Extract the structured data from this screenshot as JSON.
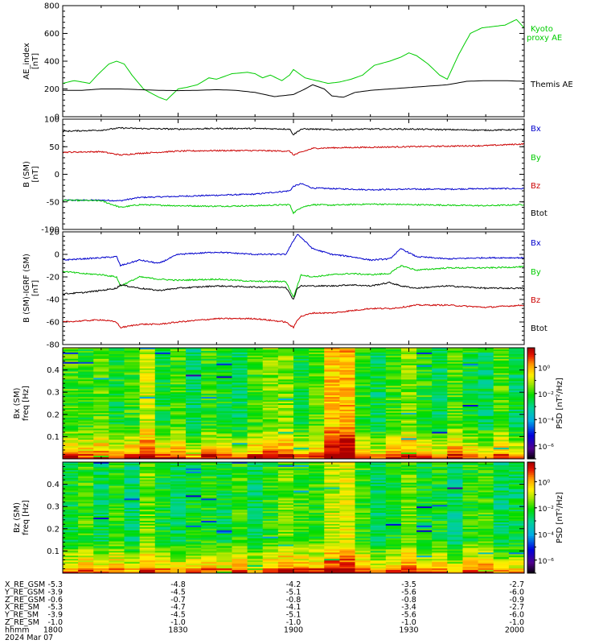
{
  "chart_data": [
    {
      "type": "line",
      "ylabel": "AE_index [nT]",
      "ylim": [
        0,
        800
      ],
      "y_ticks": [
        0,
        200,
        400,
        600,
        800
      ],
      "x_range": [
        "18:00",
        "20:00"
      ],
      "series": [
        {
          "name": "Kyoto proxy AE",
          "color": "#00cc00",
          "x": [
            "18:00",
            "18:03",
            "18:07",
            "18:09",
            "18:12",
            "18:14",
            "18:16",
            "18:18",
            "18:21",
            "18:25",
            "18:27",
            "18:30",
            "18:32",
            "18:35",
            "18:38",
            "18:40",
            "18:44",
            "18:48",
            "18:50",
            "18:52",
            "18:54",
            "18:57",
            "18:59",
            "19:00",
            "19:03",
            "19:06",
            "19:09",
            "19:12",
            "19:15",
            "19:18",
            "19:21",
            "19:25",
            "19:28",
            "19:30",
            "19:32",
            "19:35",
            "19:38",
            "19:40",
            "19:43",
            "19:46",
            "19:49",
            "19:52",
            "19:55",
            "19:58",
            "20:00"
          ],
          "values": [
            240,
            260,
            240,
            300,
            380,
            400,
            380,
            300,
            200,
            140,
            120,
            200,
            210,
            230,
            280,
            270,
            310,
            320,
            310,
            280,
            300,
            260,
            300,
            340,
            280,
            260,
            240,
            250,
            270,
            300,
            370,
            400,
            430,
            460,
            440,
            380,
            300,
            270,
            450,
            600,
            640,
            650,
            660,
            700,
            640
          ]
        },
        {
          "name": "Themis AE",
          "color": "#000000",
          "x": [
            "18:00",
            "18:05",
            "18:10",
            "18:15",
            "18:20",
            "18:25",
            "18:30",
            "18:35",
            "18:40",
            "18:45",
            "18:50",
            "18:55",
            "19:00",
            "19:03",
            "19:05",
            "19:08",
            "19:10",
            "19:13",
            "19:16",
            "19:20",
            "19:25",
            "19:30",
            "19:35",
            "19:40",
            "19:45",
            "19:50",
            "19:55",
            "20:00"
          ],
          "values": [
            190,
            190,
            200,
            200,
            195,
            190,
            188,
            190,
            195,
            190,
            175,
            145,
            160,
            200,
            230,
            200,
            150,
            140,
            175,
            190,
            200,
            210,
            220,
            230,
            255,
            260,
            260,
            255
          ]
        }
      ]
    },
    {
      "type": "line",
      "ylabel": "B (SM) [nT]",
      "ylim": [
        -100,
        100
      ],
      "y_ticks": [
        -100,
        -50,
        0,
        50,
        100
      ],
      "x_range": [
        "18:00",
        "20:00"
      ],
      "series": [
        {
          "name": "Bx",
          "color": "#0000cc",
          "x": [
            "18:00",
            "18:10",
            "18:15",
            "18:20",
            "18:30",
            "18:40",
            "18:50",
            "18:59",
            "19:00",
            "19:02",
            "19:05",
            "19:10",
            "19:20",
            "19:30",
            "19:40",
            "19:50",
            "20:00"
          ],
          "values": [
            -47,
            -47,
            -48,
            -42,
            -40,
            -38,
            -36,
            -30,
            -22,
            -17,
            -25,
            -26,
            -28,
            -27,
            -27,
            -26,
            -26
          ]
        },
        {
          "name": "By",
          "color": "#00cc00",
          "x": [
            "18:00",
            "18:10",
            "18:15",
            "18:20",
            "18:30",
            "18:40",
            "18:50",
            "18:59",
            "19:00",
            "19:02",
            "19:05",
            "19:10",
            "19:20",
            "19:30",
            "19:40",
            "19:50",
            "20:00"
          ],
          "values": [
            -47,
            -48,
            -60,
            -55,
            -57,
            -58,
            -57,
            -55,
            -70,
            -60,
            -55,
            -56,
            -54,
            -55,
            -56,
            -57,
            -55
          ]
        },
        {
          "name": "Bz",
          "color": "#cc0000",
          "x": [
            "18:00",
            "18:10",
            "18:15",
            "18:20",
            "18:30",
            "18:40",
            "18:50",
            "18:59",
            "19:00",
            "19:02",
            "19:05",
            "19:10",
            "19:20",
            "19:30",
            "19:40",
            "19:50",
            "20:00"
          ],
          "values": [
            40,
            41,
            35,
            38,
            42,
            43,
            43,
            42,
            35,
            40,
            47,
            48,
            49,
            50,
            51,
            52,
            55
          ]
        },
        {
          "name": "Btot",
          "color": "#000000",
          "x": [
            "18:00",
            "18:10",
            "18:15",
            "18:20",
            "18:30",
            "18:40",
            "18:50",
            "18:59",
            "19:00",
            "19:02",
            "19:05",
            "19:10",
            "19:20",
            "19:30",
            "19:40",
            "19:50",
            "20:00"
          ],
          "values": [
            78,
            80,
            84,
            83,
            82,
            83,
            83,
            82,
            72,
            82,
            82,
            81,
            82,
            82,
            81,
            80,
            81
          ]
        }
      ]
    },
    {
      "type": "line",
      "ylabel": "B (SM)-IGRF (SM) [nT]",
      "ylim": [
        -80,
        20
      ],
      "y_ticks": [
        -80,
        -60,
        -40,
        -20,
        0,
        20
      ],
      "x_range": [
        "18:00",
        "20:00"
      ],
      "series": [
        {
          "name": "Bx",
          "color": "#0000cc",
          "x": [
            "18:00",
            "18:05",
            "18:10",
            "18:14",
            "18:15",
            "18:20",
            "18:25",
            "18:30",
            "18:40",
            "18:50",
            "18:58",
            "19:00",
            "19:01",
            "19:02",
            "19:05",
            "19:10",
            "19:15",
            "19:20",
            "19:25",
            "19:28",
            "19:32",
            "19:40",
            "19:50",
            "20:00"
          ],
          "values": [
            -5,
            -4,
            -3,
            -2,
            -10,
            -5,
            -8,
            0,
            2,
            0,
            0,
            12,
            18,
            15,
            5,
            0,
            -2,
            -5,
            -4,
            5,
            -2,
            -4,
            -3,
            -3
          ]
        },
        {
          "name": "By",
          "color": "#00cc00",
          "x": [
            "18:00",
            "18:05",
            "18:10",
            "18:14",
            "18:15",
            "18:20",
            "18:25",
            "18:30",
            "18:40",
            "18:50",
            "18:58",
            "19:00",
            "19:01",
            "19:02",
            "19:05",
            "19:10",
            "19:15",
            "19:20",
            "19:25",
            "19:28",
            "19:32",
            "19:40",
            "19:50",
            "20:00"
          ],
          "values": [
            -15,
            -17,
            -18,
            -20,
            -28,
            -20,
            -22,
            -23,
            -22,
            -24,
            -24,
            -38,
            -28,
            -18,
            -20,
            -18,
            -17,
            -18,
            -17,
            -10,
            -14,
            -12,
            -12,
            -11
          ]
        },
        {
          "name": "Bz",
          "color": "#cc0000",
          "x": [
            "18:00",
            "18:05",
            "18:10",
            "18:14",
            "18:15",
            "18:20",
            "18:25",
            "18:30",
            "18:40",
            "18:50",
            "18:58",
            "19:00",
            "19:01",
            "19:02",
            "19:05",
            "19:10",
            "19:15",
            "19:20",
            "19:25",
            "19:28",
            "19:32",
            "19:40",
            "19:50",
            "20:00"
          ],
          "values": [
            -60,
            -59,
            -58,
            -60,
            -65,
            -62,
            -62,
            -60,
            -57,
            -57,
            -60,
            -65,
            -58,
            -55,
            -52,
            -52,
            -50,
            -48,
            -48,
            -47,
            -45,
            -45,
            -47,
            -45
          ]
        },
        {
          "name": "Btot",
          "color": "#000000",
          "x": [
            "18:00",
            "18:05",
            "18:10",
            "18:14",
            "18:15",
            "18:20",
            "18:25",
            "18:30",
            "18:40",
            "18:50",
            "18:58",
            "19:00",
            "19:01",
            "19:02",
            "19:05",
            "19:10",
            "19:15",
            "19:20",
            "19:25",
            "19:28",
            "19:32",
            "19:40",
            "19:50",
            "20:00"
          ],
          "values": [
            -35,
            -34,
            -32,
            -30,
            -27,
            -30,
            -32,
            -30,
            -28,
            -29,
            -29,
            -40,
            -30,
            -28,
            -28,
            -28,
            -27,
            -28,
            -25,
            -28,
            -30,
            -28,
            -30,
            -30
          ]
        }
      ]
    },
    {
      "type": "heatmap",
      "ylabel": "Bx (SM) freq [Hz]",
      "y_ticks": [
        0.1,
        0.2,
        0.3,
        0.4
      ],
      "ylim": [
        0,
        0.5
      ],
      "x_range": [
        "18:00",
        "20:00"
      ],
      "colorbar_label": "PSD [nT²/Hz]",
      "colorbar_ticks": [
        "10⁰",
        "10⁻²",
        "10⁻⁴",
        "10⁻⁶"
      ],
      "colorbar_log_range": [
        -7,
        1.5
      ]
    },
    {
      "type": "heatmap",
      "ylabel": "Bz (SM) freq [Hz]",
      "y_ticks": [
        0.1,
        0.2,
        0.3,
        0.4
      ],
      "ylim": [
        0,
        0.5
      ],
      "x_range": [
        "18:00",
        "20:00"
      ],
      "colorbar_label": "PSD [nT²/Hz]",
      "colorbar_ticks": [
        "10⁰",
        "10⁻²",
        "10⁻⁴",
        "10⁻⁶"
      ],
      "colorbar_log_range": [
        -7,
        1.5
      ]
    }
  ],
  "legends": {
    "ae": {
      "kyoto": "Kyoto\nproxy AE",
      "themis": "Themis AE"
    },
    "b": [
      "Bx",
      "By",
      "Bz",
      "Btot"
    ],
    "db": [
      "Bx",
      "By",
      "Bz",
      "Btot"
    ]
  },
  "position_table": {
    "rows": [
      {
        "label": "X_RE_GSM",
        "values": [
          "-5.3",
          "-4.8",
          "-4.2",
          "-3.5",
          "-2.7"
        ]
      },
      {
        "label": "Y_RE_GSM",
        "values": [
          "-3.9",
          "-4.5",
          "-5.1",
          "-5.6",
          "-6.0"
        ]
      },
      {
        "label": "Z_RE_GSM",
        "values": [
          "-0.6",
          "-0.7",
          "-0.8",
          "-0.8",
          "-0.9"
        ]
      },
      {
        "label": "X_RE_SM",
        "values": [
          "-5.3",
          "-4.7",
          "-4.1",
          "-3.4",
          "-2.7"
        ]
      },
      {
        "label": "Y_RE_SM",
        "values": [
          "-3.9",
          "-4.5",
          "-5.1",
          "-5.6",
          "-6.0"
        ]
      },
      {
        "label": "Z_RE_SM",
        "values": [
          "-1.0",
          "-1.0",
          "-1.0",
          "-1.0",
          "-1.0"
        ]
      },
      {
        "label": "hhmm",
        "values": [
          "1800",
          "1830",
          "1900",
          "1930",
          "2000"
        ]
      }
    ],
    "date": "2024 Mar 07"
  }
}
